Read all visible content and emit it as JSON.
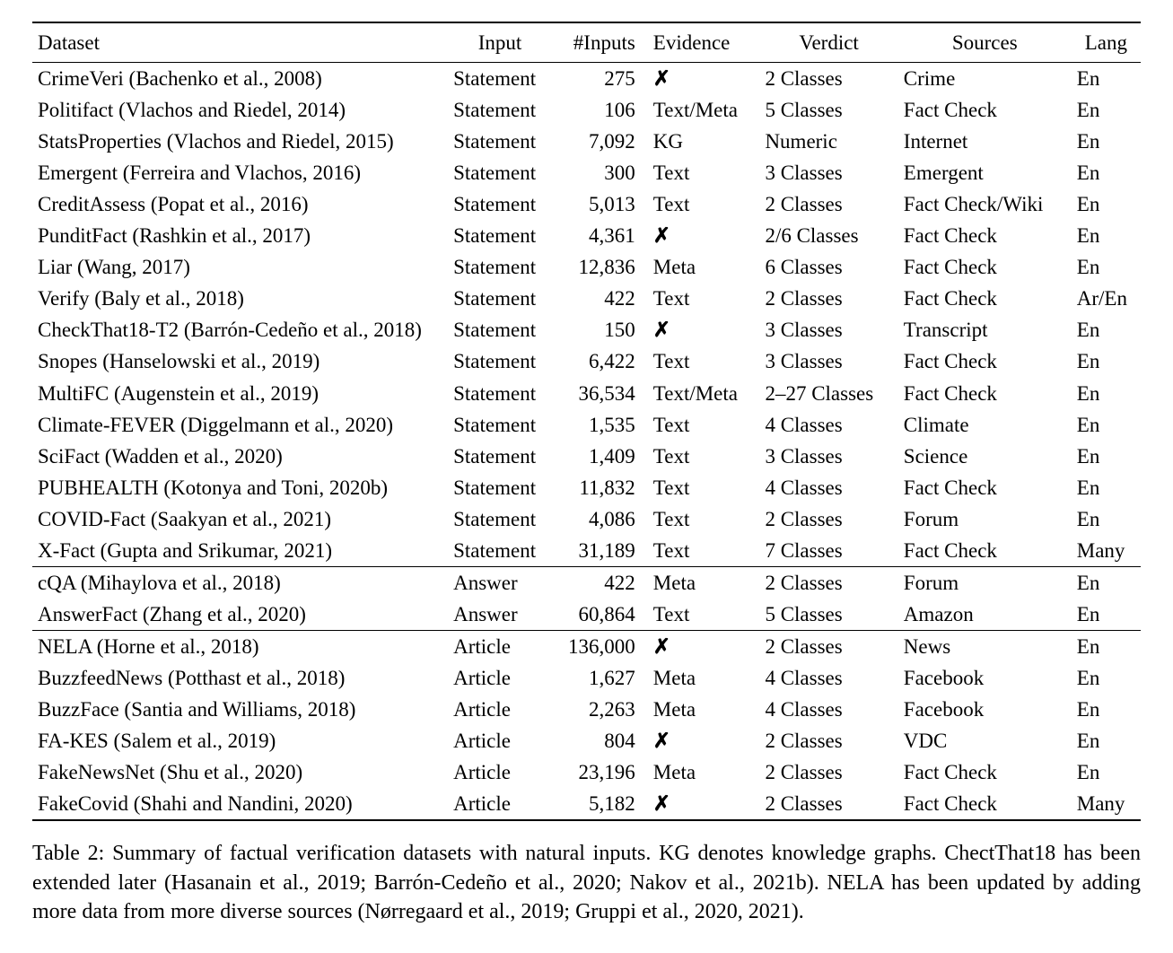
{
  "table": {
    "columns": [
      {
        "key": "dataset",
        "label": "Dataset",
        "class": "col-dataset",
        "width": "36%",
        "thAlign": "left"
      },
      {
        "key": "input",
        "label": "Input",
        "class": "col-input",
        "width": "9%",
        "thAlign": "center"
      },
      {
        "key": "ninputs",
        "label": "#Inputs",
        "class": "col-ninputs",
        "width": "8%",
        "thAlign": "right"
      },
      {
        "key": "evidence",
        "label": "Evidence",
        "class": "col-evidence",
        "width": "10%",
        "thAlign": "left"
      },
      {
        "key": "verdict",
        "label": "Verdict",
        "class": "col-verdict",
        "width": "12%",
        "thAlign": "center"
      },
      {
        "key": "sources",
        "label": "Sources",
        "class": "col-sources",
        "width": "15%",
        "thAlign": "center"
      },
      {
        "key": "lang",
        "label": "Lang",
        "class": "col-lang",
        "width": "6%",
        "thAlign": "center"
      }
    ],
    "xmark_glyph": "✗",
    "sections": [
      {
        "rows": [
          {
            "dataset": "CrimeVeri (Bachenko et al., 2008)",
            "input": "Statement",
            "ninputs": "275",
            "evidence": "X",
            "verdict": "2 Classes",
            "sources": "Crime",
            "lang": "En"
          },
          {
            "dataset": "Politifact (Vlachos and Riedel, 2014)",
            "input": "Statement",
            "ninputs": "106",
            "evidence": "Text/Meta",
            "verdict": "5 Classes",
            "sources": "Fact Check",
            "lang": "En"
          },
          {
            "dataset": "StatsProperties (Vlachos and Riedel, 2015)",
            "input": "Statement",
            "ninputs": "7,092",
            "evidence": "KG",
            "verdict": "Numeric",
            "sources": "Internet",
            "lang": "En"
          },
          {
            "dataset": "Emergent (Ferreira and Vlachos, 2016)",
            "input": "Statement",
            "ninputs": "300",
            "evidence": "Text",
            "verdict": "3 Classes",
            "sources": "Emergent",
            "lang": "En"
          },
          {
            "dataset": "CreditAssess (Popat et al., 2016)",
            "input": "Statement",
            "ninputs": "5,013",
            "evidence": "Text",
            "verdict": "2 Classes",
            "sources": "Fact Check/Wiki",
            "lang": "En"
          },
          {
            "dataset": "PunditFact (Rashkin et al., 2017)",
            "input": "Statement",
            "ninputs": "4,361",
            "evidence": "X",
            "verdict": "2/6 Classes",
            "sources": "Fact Check",
            "lang": "En"
          },
          {
            "dataset": "Liar (Wang, 2017)",
            "input": "Statement",
            "ninputs": "12,836",
            "evidence": "Meta",
            "verdict": "6 Classes",
            "sources": "Fact Check",
            "lang": "En"
          },
          {
            "dataset": "Verify (Baly et al., 2018)",
            "input": "Statement",
            "ninputs": "422",
            "evidence": "Text",
            "verdict": "2 Classes",
            "sources": "Fact Check",
            "lang": "Ar/En"
          },
          {
            "dataset": "CheckThat18-T2 (Barrón-Cedeño et al., 2018)",
            "input": "Statement",
            "ninputs": "150",
            "evidence": "X",
            "verdict": "3 Classes",
            "sources": "Transcript",
            "lang": "En"
          },
          {
            "dataset": "Snopes (Hanselowski et al., 2019)",
            "input": "Statement",
            "ninputs": "6,422",
            "evidence": "Text",
            "verdict": "3 Classes",
            "sources": "Fact Check",
            "lang": "En"
          },
          {
            "dataset": "MultiFC (Augenstein et al., 2019)",
            "input": "Statement",
            "ninputs": "36,534",
            "evidence": "Text/Meta",
            "verdict": "2–27 Classes",
            "sources": "Fact Check",
            "lang": "En"
          },
          {
            "dataset": "Climate-FEVER (Diggelmann et al., 2020)",
            "input": "Statement",
            "ninputs": "1,535",
            "evidence": "Text",
            "verdict": "4 Classes",
            "sources": "Climate",
            "lang": "En"
          },
          {
            "dataset": "SciFact (Wadden et al., 2020)",
            "input": "Statement",
            "ninputs": "1,409",
            "evidence": "Text",
            "verdict": "3 Classes",
            "sources": "Science",
            "lang": "En"
          },
          {
            "dataset": "PUBHEALTH (Kotonya and Toni, 2020b)",
            "input": "Statement",
            "ninputs": "11,832",
            "evidence": "Text",
            "verdict": "4 Classes",
            "sources": "Fact Check",
            "lang": "En"
          },
          {
            "dataset": "COVID-Fact (Saakyan et al., 2021)",
            "input": "Statement",
            "ninputs": "4,086",
            "evidence": "Text",
            "verdict": "2 Classes",
            "sources": "Forum",
            "lang": "En"
          },
          {
            "dataset": "X-Fact (Gupta and Srikumar, 2021)",
            "input": "Statement",
            "ninputs": "31,189",
            "evidence": "Text",
            "verdict": "7 Classes",
            "sources": "Fact Check",
            "lang": "Many"
          }
        ]
      },
      {
        "rows": [
          {
            "dataset": "cQA (Mihaylova et al., 2018)",
            "input": "Answer",
            "ninputs": "422",
            "evidence": "Meta",
            "verdict": "2 Classes",
            "sources": "Forum",
            "lang": "En"
          },
          {
            "dataset": "AnswerFact (Zhang et al., 2020)",
            "input": "Answer",
            "ninputs": "60,864",
            "evidence": "Text",
            "verdict": "5 Classes",
            "sources": "Amazon",
            "lang": "En"
          }
        ]
      },
      {
        "rows": [
          {
            "dataset": "NELA (Horne et al., 2018)",
            "input": "Article",
            "ninputs": "136,000",
            "evidence": "X",
            "verdict": "2 Classes",
            "sources": "News",
            "lang": "En"
          },
          {
            "dataset": "BuzzfeedNews (Potthast et al., 2018)",
            "input": "Article",
            "ninputs": "1,627",
            "evidence": "Meta",
            "verdict": "4 Classes",
            "sources": "Facebook",
            "lang": "En"
          },
          {
            "dataset": "BuzzFace (Santia and Williams, 2018)",
            "input": "Article",
            "ninputs": "2,263",
            "evidence": "Meta",
            "verdict": "4 Classes",
            "sources": "Facebook",
            "lang": "En"
          },
          {
            "dataset": "FA-KES (Salem et al., 2019)",
            "input": "Article",
            "ninputs": "804",
            "evidence": "X",
            "verdict": "2 Classes",
            "sources": "VDC",
            "lang": "En"
          },
          {
            "dataset": "FakeNewsNet (Shu et al., 2020)",
            "input": "Article",
            "ninputs": "23,196",
            "evidence": "Meta",
            "verdict": "2 Classes",
            "sources": "Fact Check",
            "lang": "En"
          },
          {
            "dataset": "FakeCovid (Shahi and Nandini, 2020)",
            "input": "Article",
            "ninputs": "5,182",
            "evidence": "X",
            "verdict": "2 Classes",
            "sources": "Fact Check",
            "lang": "Many"
          }
        ]
      }
    ]
  },
  "caption": "Table 2: Summary of factual verification datasets with natural inputs. KG denotes knowledge graphs. ChectThat18 has been extended later (Hasanain et al., 2019; Barrón-Cedeño et al., 2020; Nakov et al., 2021b). NELA has been updated by adding more data from more diverse sources (Nørregaard et al., 2019; Gruppi et al., 2020, 2021)."
}
